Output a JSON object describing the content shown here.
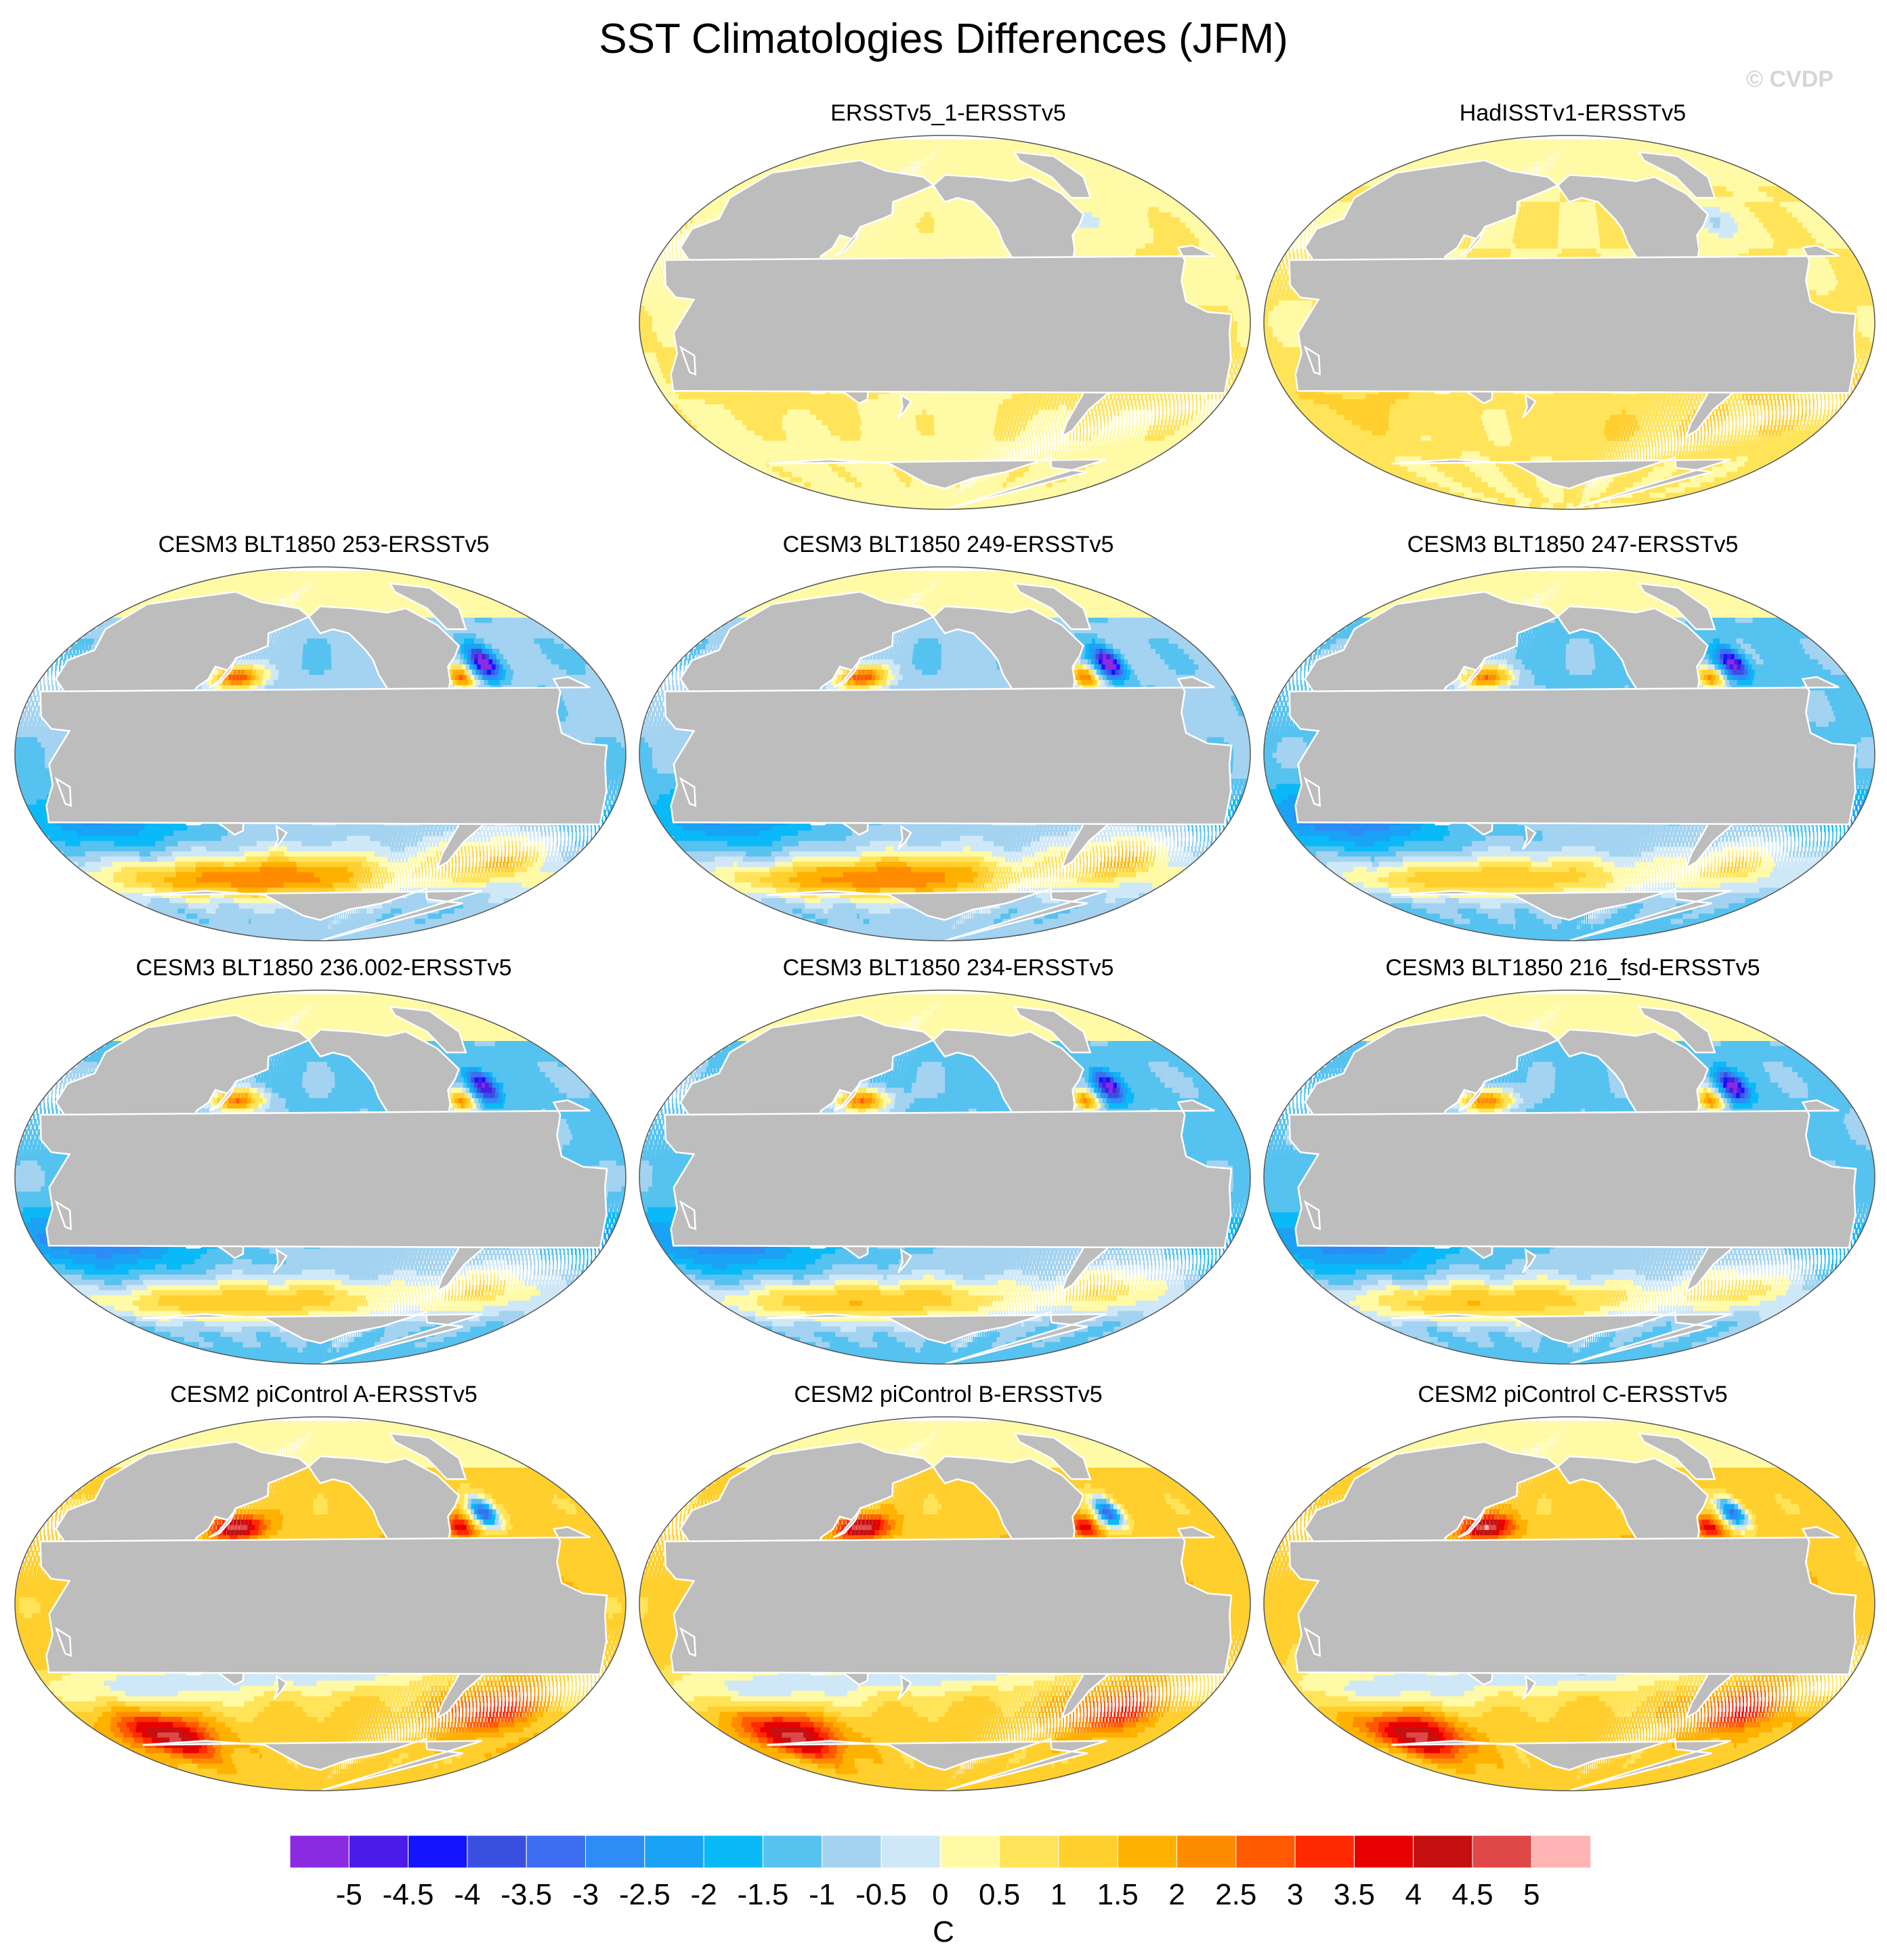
{
  "title": "SST Climatologies Differences (JFM)",
  "watermark": "© CVDP",
  "land_color": "#bdbdbd",
  "colorbar": {
    "unit": "C",
    "levels": [
      "-5",
      "-4.5",
      "-4",
      "-3.5",
      "-3",
      "-2.5",
      "-2",
      "-1.5",
      "-1",
      "-0.5",
      "0",
      "0.5",
      "1",
      "1.5",
      "2",
      "2.5",
      "3",
      "3.5",
      "4",
      "4.5",
      "5"
    ],
    "colors": [
      "#8a2be2",
      "#4b1be8",
      "#1414ff",
      "#3a4fe0",
      "#3d6ef2",
      "#2d8cf5",
      "#1aa2f5",
      "#0ab9f7",
      "#56c2f0",
      "#a3d3f0",
      "#cfe8f7",
      "#fffaa6",
      "#ffe45a",
      "#ffcf2e",
      "#ffb100",
      "#ff8c00",
      "#ff5a00",
      "#ff2a00",
      "#e60000",
      "#c41010",
      "#e04848",
      "#ffb3b3"
    ]
  },
  "panels": [
    {
      "title": "ERSSTv5_1-ERSSTv5",
      "regime": "obs1"
    },
    {
      "title": "HadISSTv1-ERSSTv5",
      "regime": "obs2"
    },
    {
      "title": "CESM3 BLT1850 253-ERSSTv5",
      "regime": "cesm3"
    },
    {
      "title": "CESM3 BLT1850 249-ERSSTv5",
      "regime": "cesm3"
    },
    {
      "title": "CESM3 BLT1850 247-ERSSTv5",
      "regime": "cesm3b"
    },
    {
      "title": "CESM3 BLT1850 236.002-ERSSTv5",
      "regime": "cesm3b"
    },
    {
      "title": "CESM3 BLT1850 234-ERSSTv5",
      "regime": "cesm3b"
    },
    {
      "title": "CESM3 BLT1850 216_fsd-ERSSTv5",
      "regime": "cesm3b"
    },
    {
      "title": "CESM2 piControl A-ERSSTv5",
      "regime": "cesm2"
    },
    {
      "title": "CESM2 piControl B-ERSSTv5",
      "regime": "cesm2"
    },
    {
      "title": "CESM2 piControl C-ERSSTv5",
      "regime": "cesm2"
    }
  ]
}
